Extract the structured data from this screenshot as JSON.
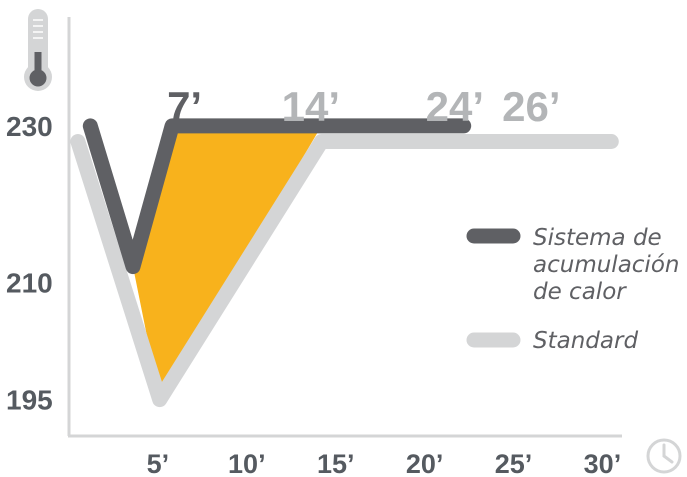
{
  "chart_data": {
    "type": "line",
    "xlabel": "",
    "ylabel": "",
    "x_tick_labels": [
      "5’",
      "10’",
      "15’",
      "20’",
      "25’",
      "30’"
    ],
    "x_ticks": [
      5,
      10,
      15,
      20,
      25,
      30
    ],
    "y_tick_labels": [
      "230",
      "210",
      "195"
    ],
    "y_ticks": [
      230,
      210,
      195
    ],
    "xlim": [
      0,
      32
    ],
    "ylim": [
      186,
      242
    ],
    "grid": false,
    "legend_position": "right",
    "series": [
      {
        "name": "Sistema de acumulación de calor",
        "color": "#5f6064",
        "points": [
          [
            1.2,
            230
          ],
          [
            3.6,
            212
          ],
          [
            5.8,
            230
          ],
          [
            22.2,
            230
          ]
        ]
      },
      {
        "name": "Standard",
        "color": "#d4d5d6",
        "points": [
          [
            0.5,
            228
          ],
          [
            5.1,
            195
          ],
          [
            14.2,
            228
          ],
          [
            30.5,
            228
          ]
        ]
      }
    ],
    "fill_between_color": "#f8b21c",
    "annotations": [
      {
        "text": "7’",
        "x": 6.5,
        "style": "dark"
      },
      {
        "text": "14’",
        "x": 13.6,
        "style": "light"
      },
      {
        "text": "24’",
        "x": 21.7,
        "style": "light"
      },
      {
        "text": "26’",
        "x": 26.0,
        "style": "light"
      }
    ],
    "icons": [
      "thermometer-icon",
      "clock-icon"
    ]
  }
}
